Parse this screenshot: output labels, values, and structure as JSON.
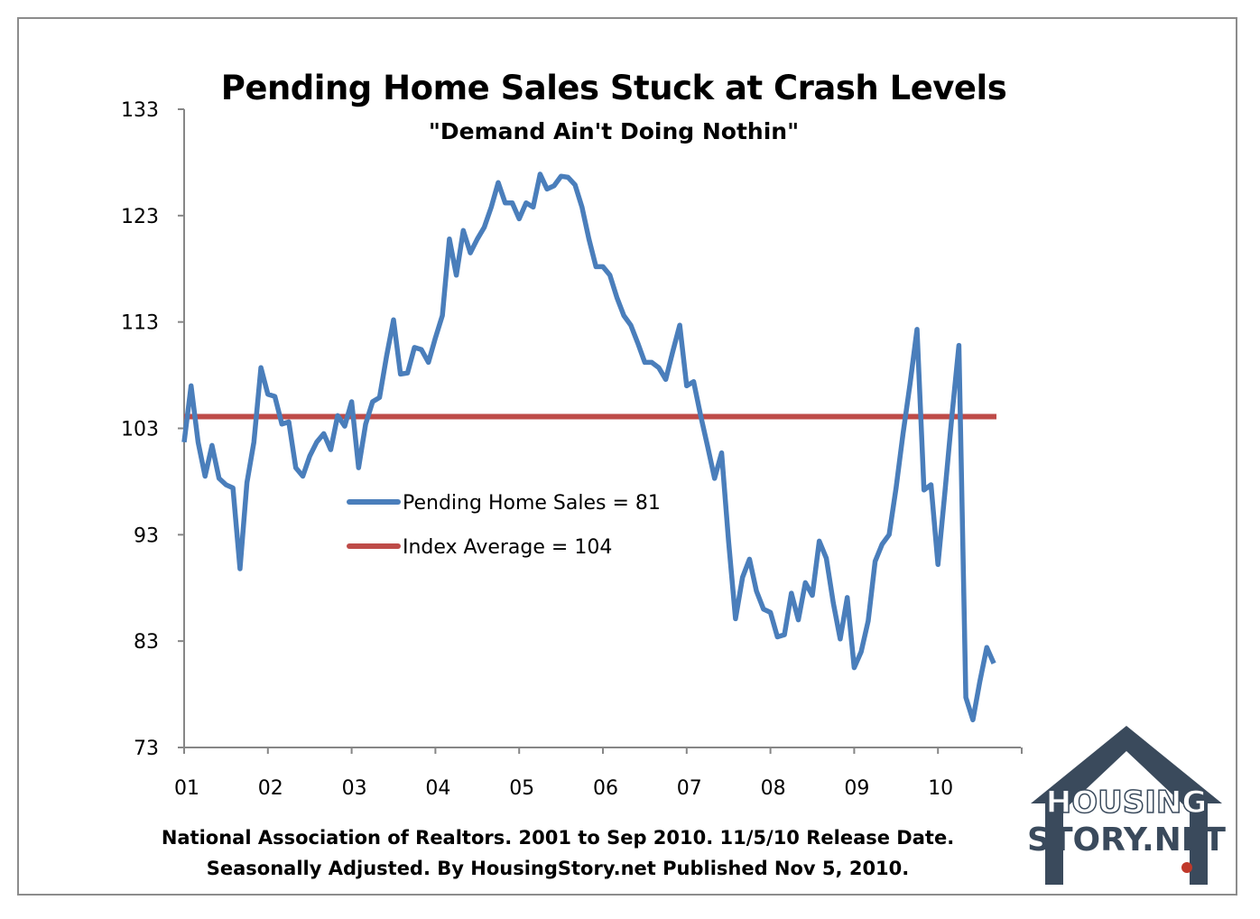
{
  "chart_data": {
    "type": "line",
    "title": "Pending Home Sales Stuck at Crash Levels",
    "subtitle": "\"Demand Ain't Doing Nothin\"",
    "xlabel": "",
    "ylabel": "",
    "ylim": [
      73,
      133
    ],
    "yticks": [
      "133",
      "123",
      "113",
      "103",
      "93",
      "83",
      "73"
    ],
    "ytick_values": [
      133,
      123,
      113,
      103,
      93,
      83,
      73
    ],
    "xticks": [
      "01",
      "02",
      "03",
      "04",
      "05",
      "06",
      "07",
      "08",
      "09",
      "10"
    ],
    "x_start": "Jan 2001",
    "x_end": "Sep 2010",
    "legend_position": "center-left",
    "series": [
      {
        "name": "Pending Home Sales = 81",
        "color": "#4a7ebb",
        "values": [
          101.7,
          107,
          101.7,
          98.5,
          101.4,
          98.3,
          97.7,
          97.4,
          89.8,
          97.9,
          101.7,
          108.7,
          106.2,
          106,
          103.4,
          103.6,
          99.3,
          98.5,
          100.4,
          101.7,
          102.5,
          101,
          104.2,
          103.2,
          105.5,
          99.3,
          103.4,
          105.5,
          105.9,
          109.8,
          113.2,
          108.1,
          108.2,
          110.6,
          110.4,
          109.2,
          111.5,
          113.6,
          120.8,
          117.4,
          121.6,
          119.5,
          120.8,
          121.9,
          123.8,
          126.1,
          124.2,
          124.2,
          122.7,
          124.2,
          123.8,
          126.9,
          125.5,
          125.8,
          126.7,
          126.6,
          125.9,
          123.8,
          120.8,
          118.2,
          118.2,
          117.4,
          115.3,
          113.6,
          112.7,
          111,
          109.2,
          109.2,
          108.7,
          107.6,
          110.2,
          112.7,
          107,
          107.4,
          104.2,
          101.3,
          98.3,
          100.7,
          92.4,
          85.1,
          89,
          90.7,
          87.7,
          86,
          85.7,
          83.4,
          83.6,
          87.5,
          85,
          88.5,
          87.3,
          92.4,
          90.8,
          86.6,
          83.2,
          87.1,
          80.5,
          82,
          84.9,
          90.5,
          92.1,
          93,
          97.4,
          102.5,
          107.2,
          112.3,
          97.2,
          97.7,
          90.2,
          97,
          104.2,
          110.8,
          77.7,
          75.6,
          79.2,
          82.4,
          80.9
        ]
      },
      {
        "name": "Index Average = 104",
        "color": "#be4b48",
        "values": [
          104.1
        ]
      }
    ],
    "footnote": [
      "National Association of Realtors. 2001 to Sep 2010. 11/5/10 Release Date.",
      "Seasonally Adjusted. By HousingStory.net Published Nov 5, 2010."
    ]
  },
  "logo": {
    "line1": "HOUSING",
    "line2": "STORY.NET"
  }
}
